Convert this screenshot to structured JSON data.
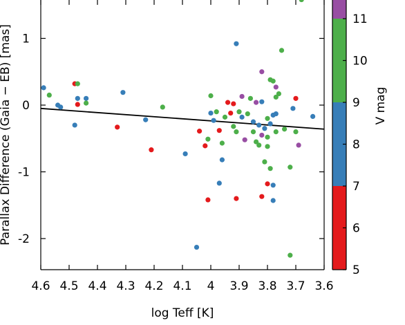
{
  "chart_data": {
    "type": "scatter",
    "title": "",
    "xlabel": "log Teff [K]",
    "ylabel": "Parallax Difference (Gaia − EB) [mas]",
    "xlim": [
      4.6,
      3.6
    ],
    "ylim": [
      -2.5,
      1.5
    ],
    "x_reversed": true,
    "xticks": [
      4.6,
      4.5,
      4.4,
      4.3,
      4.2,
      4.1,
      4,
      3.9,
      3.8,
      3.7,
      3.6
    ],
    "xtick_labels": [
      "4.6",
      "4.5",
      "4.4",
      "4.3",
      "4.2",
      "4.1",
      "4",
      "3.9",
      "3.8",
      "3.7",
      "3.6"
    ],
    "yticks": [
      1,
      0,
      -1,
      -2
    ],
    "ytick_labels": [
      "1",
      "0",
      "-1",
      "-2"
    ],
    "grid": false,
    "trend_line": {
      "x": [
        4.6,
        3.6
      ],
      "y": [
        -0.05,
        -0.36
      ]
    },
    "colorbar": {
      "label": "V mag",
      "range": [
        5,
        12
      ],
      "tick_values": [
        5,
        6,
        7,
        8,
        9,
        10,
        11
      ],
      "tick_labels": [
        "5",
        "6",
        "7",
        "8",
        "9",
        "10",
        "11"
      ],
      "bands": [
        {
          "from": 5,
          "to": 7,
          "color": "#e41a1c"
        },
        {
          "from": 7,
          "to": 9,
          "color": "#377eb8"
        },
        {
          "from": 9,
          "to": 11,
          "color": "#4daf4a"
        },
        {
          "from": 11,
          "to": 12,
          "color": "#984ea3"
        }
      ]
    },
    "points": [
      {
        "x": 4.59,
        "y": 0.26,
        "color": "#377eb8"
      },
      {
        "x": 4.57,
        "y": 0.15,
        "color": "#4daf4a"
      },
      {
        "x": 4.54,
        "y": 0.0,
        "color": "#377eb8"
      },
      {
        "x": 4.53,
        "y": -0.03,
        "color": "#377eb8"
      },
      {
        "x": 4.48,
        "y": 0.32,
        "color": "#e41a1c"
      },
      {
        "x": 4.47,
        "y": 0.32,
        "color": "#4daf4a"
      },
      {
        "x": 4.47,
        "y": 0.1,
        "color": "#377eb8"
      },
      {
        "x": 4.47,
        "y": 0.01,
        "color": "#e41a1c"
      },
      {
        "x": 4.48,
        "y": -0.3,
        "color": "#377eb8"
      },
      {
        "x": 4.44,
        "y": 0.1,
        "color": "#377eb8"
      },
      {
        "x": 4.44,
        "y": 0.03,
        "color": "#4daf4a"
      },
      {
        "x": 4.33,
        "y": -0.33,
        "color": "#e41a1c"
      },
      {
        "x": 4.31,
        "y": 0.19,
        "color": "#377eb8"
      },
      {
        "x": 4.23,
        "y": -0.22,
        "color": "#377eb8"
      },
      {
        "x": 4.21,
        "y": -0.67,
        "color": "#e41a1c"
      },
      {
        "x": 4.17,
        "y": -0.03,
        "color": "#4daf4a"
      },
      {
        "x": 4.09,
        "y": -0.73,
        "color": "#377eb8"
      },
      {
        "x": 4.05,
        "y": -2.13,
        "color": "#377eb8"
      },
      {
        "x": 4.04,
        "y": -0.39,
        "color": "#e41a1c"
      },
      {
        "x": 4.02,
        "y": -0.61,
        "color": "#e41a1c"
      },
      {
        "x": 4.01,
        "y": -0.51,
        "color": "#4daf4a"
      },
      {
        "x": 4.01,
        "y": -1.42,
        "color": "#e41a1c"
      },
      {
        "x": 4.0,
        "y": 0.14,
        "color": "#4daf4a"
      },
      {
        "x": 4.0,
        "y": -0.12,
        "color": "#377eb8"
      },
      {
        "x": 3.99,
        "y": -0.23,
        "color": "#377eb8"
      },
      {
        "x": 3.98,
        "y": -0.1,
        "color": "#4daf4a"
      },
      {
        "x": 3.97,
        "y": -0.38,
        "color": "#e41a1c"
      },
      {
        "x": 3.97,
        "y": -1.17,
        "color": "#377eb8"
      },
      {
        "x": 3.96,
        "y": -0.82,
        "color": "#377eb8"
      },
      {
        "x": 3.96,
        "y": -0.57,
        "color": "#4daf4a"
      },
      {
        "x": 3.95,
        "y": -0.18,
        "color": "#4daf4a"
      },
      {
        "x": 3.94,
        "y": 0.04,
        "color": "#e41a1c"
      },
      {
        "x": 3.93,
        "y": -0.12,
        "color": "#e41a1c"
      },
      {
        "x": 3.92,
        "y": 0.02,
        "color": "#e41a1c"
      },
      {
        "x": 3.92,
        "y": -0.32,
        "color": "#4daf4a"
      },
      {
        "x": 3.91,
        "y": 0.92,
        "color": "#377eb8"
      },
      {
        "x": 3.91,
        "y": -0.4,
        "color": "#4daf4a"
      },
      {
        "x": 3.91,
        "y": -1.4,
        "color": "#e41a1c"
      },
      {
        "x": 3.9,
        "y": -0.1,
        "color": "#4daf4a"
      },
      {
        "x": 3.89,
        "y": 0.13,
        "color": "#984ea3"
      },
      {
        "x": 3.89,
        "y": -0.18,
        "color": "#377eb8"
      },
      {
        "x": 3.88,
        "y": -0.52,
        "color": "#984ea3"
      },
      {
        "x": 3.87,
        "y": -0.13,
        "color": "#4daf4a"
      },
      {
        "x": 3.86,
        "y": 0.1,
        "color": "#4daf4a"
      },
      {
        "x": 3.85,
        "y": -0.25,
        "color": "#377eb8"
      },
      {
        "x": 3.85,
        "y": -0.4,
        "color": "#4daf4a"
      },
      {
        "x": 3.84,
        "y": -0.55,
        "color": "#4daf4a"
      },
      {
        "x": 3.84,
        "y": 0.04,
        "color": "#984ea3"
      },
      {
        "x": 3.83,
        "y": -0.6,
        "color": "#4daf4a"
      },
      {
        "x": 3.83,
        "y": -0.3,
        "color": "#377eb8"
      },
      {
        "x": 3.82,
        "y": 0.5,
        "color": "#984ea3"
      },
      {
        "x": 3.82,
        "y": -0.45,
        "color": "#984ea3"
      },
      {
        "x": 3.82,
        "y": 0.05,
        "color": "#377eb8"
      },
      {
        "x": 3.82,
        "y": -1.37,
        "color": "#e41a1c"
      },
      {
        "x": 3.81,
        "y": -0.85,
        "color": "#4daf4a"
      },
      {
        "x": 3.81,
        "y": -0.35,
        "color": "#377eb8"
      },
      {
        "x": 3.8,
        "y": -0.2,
        "color": "#4daf4a"
      },
      {
        "x": 3.8,
        "y": -0.48,
        "color": "#4daf4a"
      },
      {
        "x": 3.8,
        "y": -0.62,
        "color": "#4daf4a"
      },
      {
        "x": 3.8,
        "y": -1.18,
        "color": "#e41a1c"
      },
      {
        "x": 3.79,
        "y": 0.38,
        "color": "#4daf4a"
      },
      {
        "x": 3.79,
        "y": -0.28,
        "color": "#377eb8"
      },
      {
        "x": 3.79,
        "y": -0.95,
        "color": "#4daf4a"
      },
      {
        "x": 3.78,
        "y": -1.2,
        "color": "#377eb8"
      },
      {
        "x": 3.78,
        "y": 0.36,
        "color": "#4daf4a"
      },
      {
        "x": 3.78,
        "y": -0.15,
        "color": "#377eb8"
      },
      {
        "x": 3.78,
        "y": -1.43,
        "color": "#377eb8"
      },
      {
        "x": 3.77,
        "y": 0.12,
        "color": "#4daf4a"
      },
      {
        "x": 3.77,
        "y": 0.27,
        "color": "#984ea3"
      },
      {
        "x": 3.77,
        "y": -0.4,
        "color": "#4daf4a"
      },
      {
        "x": 3.77,
        "y": -0.13,
        "color": "#377eb8"
      },
      {
        "x": 3.76,
        "y": 0.17,
        "color": "#4daf4a"
      },
      {
        "x": 3.75,
        "y": 0.82,
        "color": "#4daf4a"
      },
      {
        "x": 3.74,
        "y": -0.36,
        "color": "#4daf4a"
      },
      {
        "x": 3.72,
        "y": -0.93,
        "color": "#4daf4a"
      },
      {
        "x": 3.72,
        "y": -2.25,
        "color": "#4daf4a"
      },
      {
        "x": 3.71,
        "y": -0.05,
        "color": "#377eb8"
      },
      {
        "x": 3.7,
        "y": 0.1,
        "color": "#e41a1c"
      },
      {
        "x": 3.7,
        "y": -0.4,
        "color": "#4daf4a"
      },
      {
        "x": 3.69,
        "y": -0.6,
        "color": "#984ea3"
      },
      {
        "x": 3.68,
        "y": 1.58,
        "color": "#4daf4a"
      },
      {
        "x": 3.64,
        "y": -0.17,
        "color": "#377eb8"
      }
    ]
  }
}
